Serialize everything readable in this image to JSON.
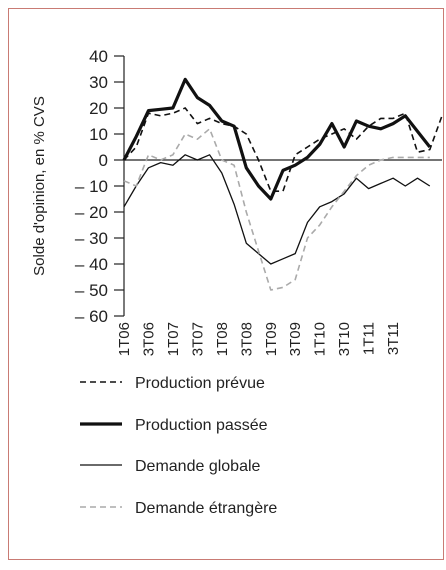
{
  "chart_data": {
    "type": "line",
    "y_label": "Solde d'opinion, en % CVS",
    "categories": [
      "1T06",
      null,
      "3T06",
      null,
      "1T07",
      null,
      "3T07",
      null,
      "1T08",
      null,
      "3T08",
      null,
      "1T09",
      null,
      "3T09",
      null,
      "1T10",
      null,
      "3T10",
      null,
      "1T11",
      null,
      "3T11",
      null,
      null,
      null,
      null
    ],
    "ylim": [
      -60,
      40
    ],
    "yticks": [
      40,
      30,
      20,
      10,
      0,
      {
        "value": -10,
        "label": "– 10"
      },
      {
        "value": -20,
        "label": "– 20"
      },
      {
        "value": -30,
        "label": "– 30"
      },
      {
        "value": -40,
        "label": "– 40"
      },
      {
        "value": -50,
        "label": "– 50"
      },
      {
        "value": -60,
        "label": "– 60"
      }
    ],
    "series": [
      {
        "name": "Production prévue",
        "color": "#111111",
        "style": "dashed",
        "values": [
          0,
          5,
          18,
          17,
          18,
          20,
          14,
          16,
          14,
          13,
          10,
          0,
          -12,
          -12,
          2,
          5,
          8,
          10,
          12,
          8,
          13,
          16,
          16,
          18,
          3,
          4,
          17
        ]
      },
      {
        "name": "Production passée",
        "color": "#111111",
        "style": "thick",
        "values": [
          0,
          9,
          19,
          19.5,
          20,
          31,
          24,
          21,
          15,
          13,
          -3,
          -10,
          -15,
          -4,
          -2,
          1,
          6,
          14,
          5,
          15,
          13,
          12,
          14,
          17,
          11,
          5,
          null
        ]
      },
      {
        "name": "Demande globale",
        "color": "#111111",
        "style": "solid",
        "values": [
          -18,
          -10,
          -3,
          -1,
          -2,
          2,
          0,
          2,
          -5,
          -17,
          -32,
          -36,
          -40,
          -38,
          -36,
          -24,
          -18,
          -16,
          -13,
          -7,
          -11,
          -9,
          -7,
          -10,
          -7,
          -10,
          null
        ]
      },
      {
        "name": "Demande étrangère",
        "color": "#aaaaaa",
        "style": "dashed",
        "values": [
          -8,
          -10,
          2,
          0,
          2,
          10,
          8,
          12,
          0,
          -2,
          -20,
          -35,
          -50,
          -49,
          -46,
          -30,
          -25,
          -18,
          -12,
          -6,
          -2,
          0,
          1,
          1,
          1,
          1,
          null
        ]
      }
    ]
  }
}
